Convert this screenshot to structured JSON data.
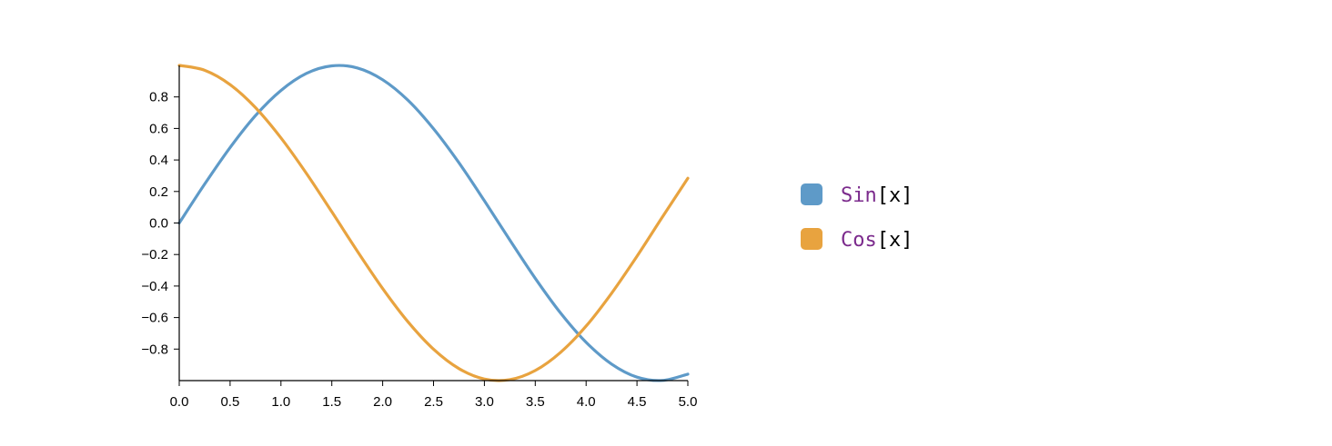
{
  "chart_data": {
    "type": "line",
    "title": "",
    "xlabel": "",
    "ylabel": "",
    "xlim": [
      0,
      5
    ],
    "ylim": [
      -1,
      1
    ],
    "grid": false,
    "legend_position": "right",
    "x_ticks": [
      "0.0",
      "0.5",
      "1.0",
      "1.5",
      "2.0",
      "2.5",
      "3.0",
      "3.5",
      "4.0",
      "4.5",
      "5.0"
    ],
    "y_ticks": [
      "0.8",
      "0.6",
      "0.4",
      "0.2",
      "0.0",
      "−0.2",
      "−0.4",
      "−0.6",
      "−0.8"
    ],
    "x": [
      0.0,
      0.25,
      0.5,
      0.75,
      1.0,
      1.25,
      1.5,
      1.75,
      2.0,
      2.25,
      2.5,
      2.75,
      3.0,
      3.25,
      3.5,
      3.75,
      4.0,
      4.25,
      4.5,
      4.75,
      5.0
    ],
    "series": [
      {
        "name": "Sin[x]",
        "name_parts": [
          "Sin",
          "[x]"
        ],
        "color": "#5e9ac8",
        "values": [
          0.0,
          0.247,
          0.479,
          0.682,
          0.841,
          0.949,
          0.997,
          0.984,
          0.909,
          0.778,
          0.598,
          0.382,
          0.141,
          -0.108,
          -0.351,
          -0.572,
          -0.757,
          -0.895,
          -0.978,
          -0.999,
          -0.959
        ]
      },
      {
        "name": "Cos[x]",
        "name_parts": [
          "Cos",
          "[x]"
        ],
        "color": "#e8a33f",
        "values": [
          1.0,
          0.969,
          0.878,
          0.732,
          0.54,
          0.315,
          0.071,
          -0.178,
          -0.416,
          -0.628,
          -0.801,
          -0.924,
          -0.99,
          -0.994,
          -0.936,
          -0.82,
          -0.654,
          -0.446,
          -0.211,
          0.038,
          0.284
        ]
      }
    ],
    "legend_keyword_color": "#7b2a8c",
    "legend_bracket_color": "#000000"
  }
}
